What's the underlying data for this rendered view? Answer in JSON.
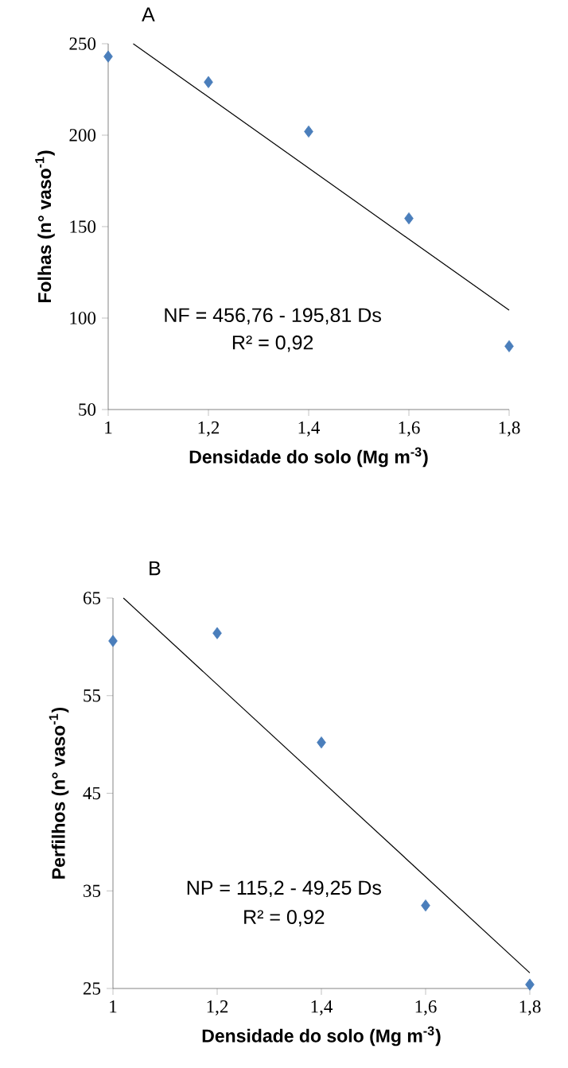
{
  "chart_data": [
    {
      "type": "scatter",
      "title": "A",
      "xlabel": "Densidade do solo (Mg m$^{-3}$)",
      "ylabel": "Folhas (n° vaso$^{-1}$)",
      "annotations": [
        "NF = 456,76 - 195,81 Ds",
        "R² = 0,92"
      ],
      "x": [
        1,
        1.2,
        1.4,
        1.6,
        1.8
      ],
      "series": [
        {
          "color": "#4a7ebb",
          "marker": "diamond",
          "values": [
            243,
            229,
            202,
            154.5,
            84.6
          ]
        },
        {
          "type": "line",
          "color": "#000000",
          "x": [
            1.05,
            1.8
          ],
          "values": [
            250,
            104.3
          ]
        }
      ],
      "xlim": [
        1,
        1.8
      ],
      "ylim": [
        50,
        250
      ],
      "xticks": [
        1,
        {
          "value": 1.2,
          "label": "1,2"
        },
        {
          "value": 1.4,
          "label": "1,4"
        },
        {
          "value": 1.6,
          "label": "1,6"
        },
        {
          "value": 1.8,
          "label": "1,8"
        }
      ],
      "yticks": [
        50,
        100,
        150,
        200,
        250
      ],
      "grid": false
    },
    {
      "type": "scatter",
      "title": "B",
      "xlabel": "Densidade do solo (Mg m$^{-3}$)",
      "ylabel": "Perfilhos (n° vaso$^{-1}$)",
      "annotations": [
        "NP = 115,2 - 49,25 Ds",
        "R² = 0,92"
      ],
      "x": [
        1,
        1.2,
        1.4,
        1.6,
        1.8
      ],
      "series": [
        {
          "color": "#4a7ebb",
          "marker": "diamond",
          "values": [
            60.6,
            61.4,
            50.2,
            33.5,
            25.4
          ]
        },
        {
          "type": "line",
          "color": "#000000",
          "x": [
            1.02,
            1.8
          ],
          "values": [
            65,
            26.6
          ]
        }
      ],
      "xlim": [
        1,
        1.8
      ],
      "ylim": [
        25,
        65
      ],
      "xticks": [
        1,
        {
          "value": 1.2,
          "label": "1,2"
        },
        {
          "value": 1.4,
          "label": "1,4"
        },
        {
          "value": 1.6,
          "label": "1,6"
        },
        {
          "value": 1.8,
          "label": "1,8"
        }
      ],
      "yticks": [
        25,
        35,
        45,
        55,
        65
      ],
      "grid": false
    }
  ]
}
